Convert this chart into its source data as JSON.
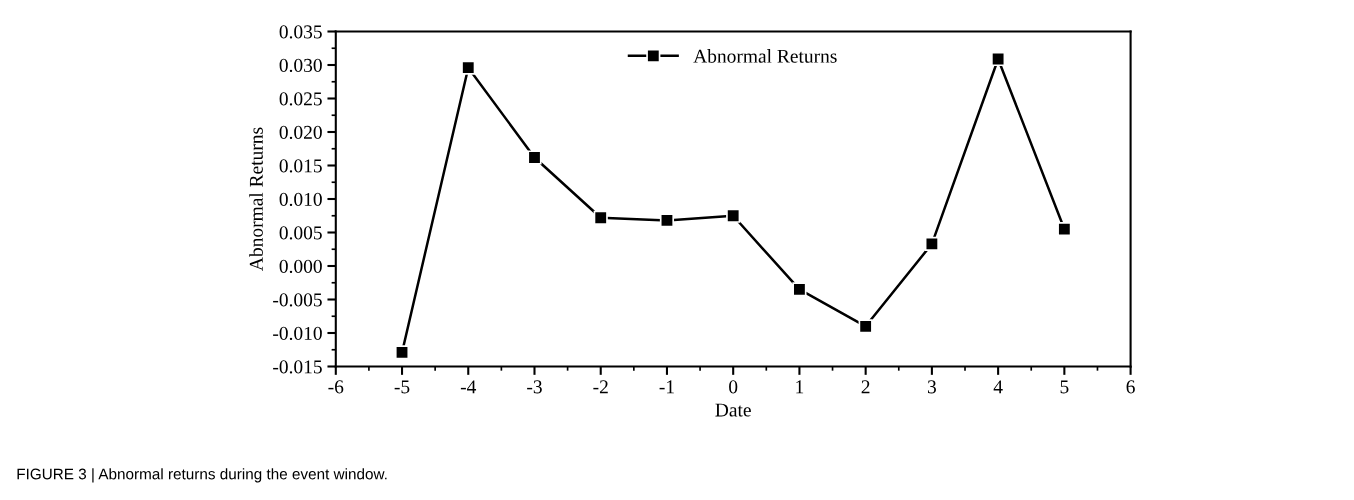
{
  "chart_data": {
    "type": "line",
    "xlabel": "Date",
    "ylabel": "Abnormal Returns",
    "x": [
      -5,
      -4,
      -3,
      -2,
      -1,
      0,
      1,
      2,
      3,
      4,
      5
    ],
    "series": [
      {
        "name": "Abnormal Returns",
        "color": "#000000",
        "values": [
          -0.0129,
          0.0296,
          0.0162,
          0.0072,
          0.0068,
          0.0075,
          -0.0035,
          -0.009,
          0.0033,
          0.0309,
          0.0055
        ]
      }
    ],
    "xlim": [
      -6,
      6
    ],
    "xticks": [
      -6,
      -5,
      -4,
      -3,
      -2,
      -1,
      0,
      1,
      2,
      3,
      4,
      5,
      6
    ],
    "ylim": [
      -0.015,
      0.035
    ],
    "yticks": [
      {
        "value": -0.015,
        "label": "-0.015"
      },
      {
        "value": -0.01,
        "label": "-0.010"
      },
      {
        "value": -0.005,
        "label": "-0.005"
      },
      {
        "value": 0,
        "label": "0.000"
      },
      {
        "value": 0.005,
        "label": "0.005"
      },
      {
        "value": 0.01,
        "label": "0.010"
      },
      {
        "value": 0.015,
        "label": "0.015"
      },
      {
        "value": 0.02,
        "label": "0.020"
      },
      {
        "value": 0.025,
        "label": "0.025"
      },
      {
        "value": 0.03,
        "label": "0.030"
      },
      {
        "value": 0.035,
        "label": "0.035"
      }
    ],
    "marker": "square",
    "line_style": "solid",
    "grid": false,
    "legend": "top",
    "annotations": [
      "FIGURE 3 | Abnormal returns during the event window."
    ]
  }
}
